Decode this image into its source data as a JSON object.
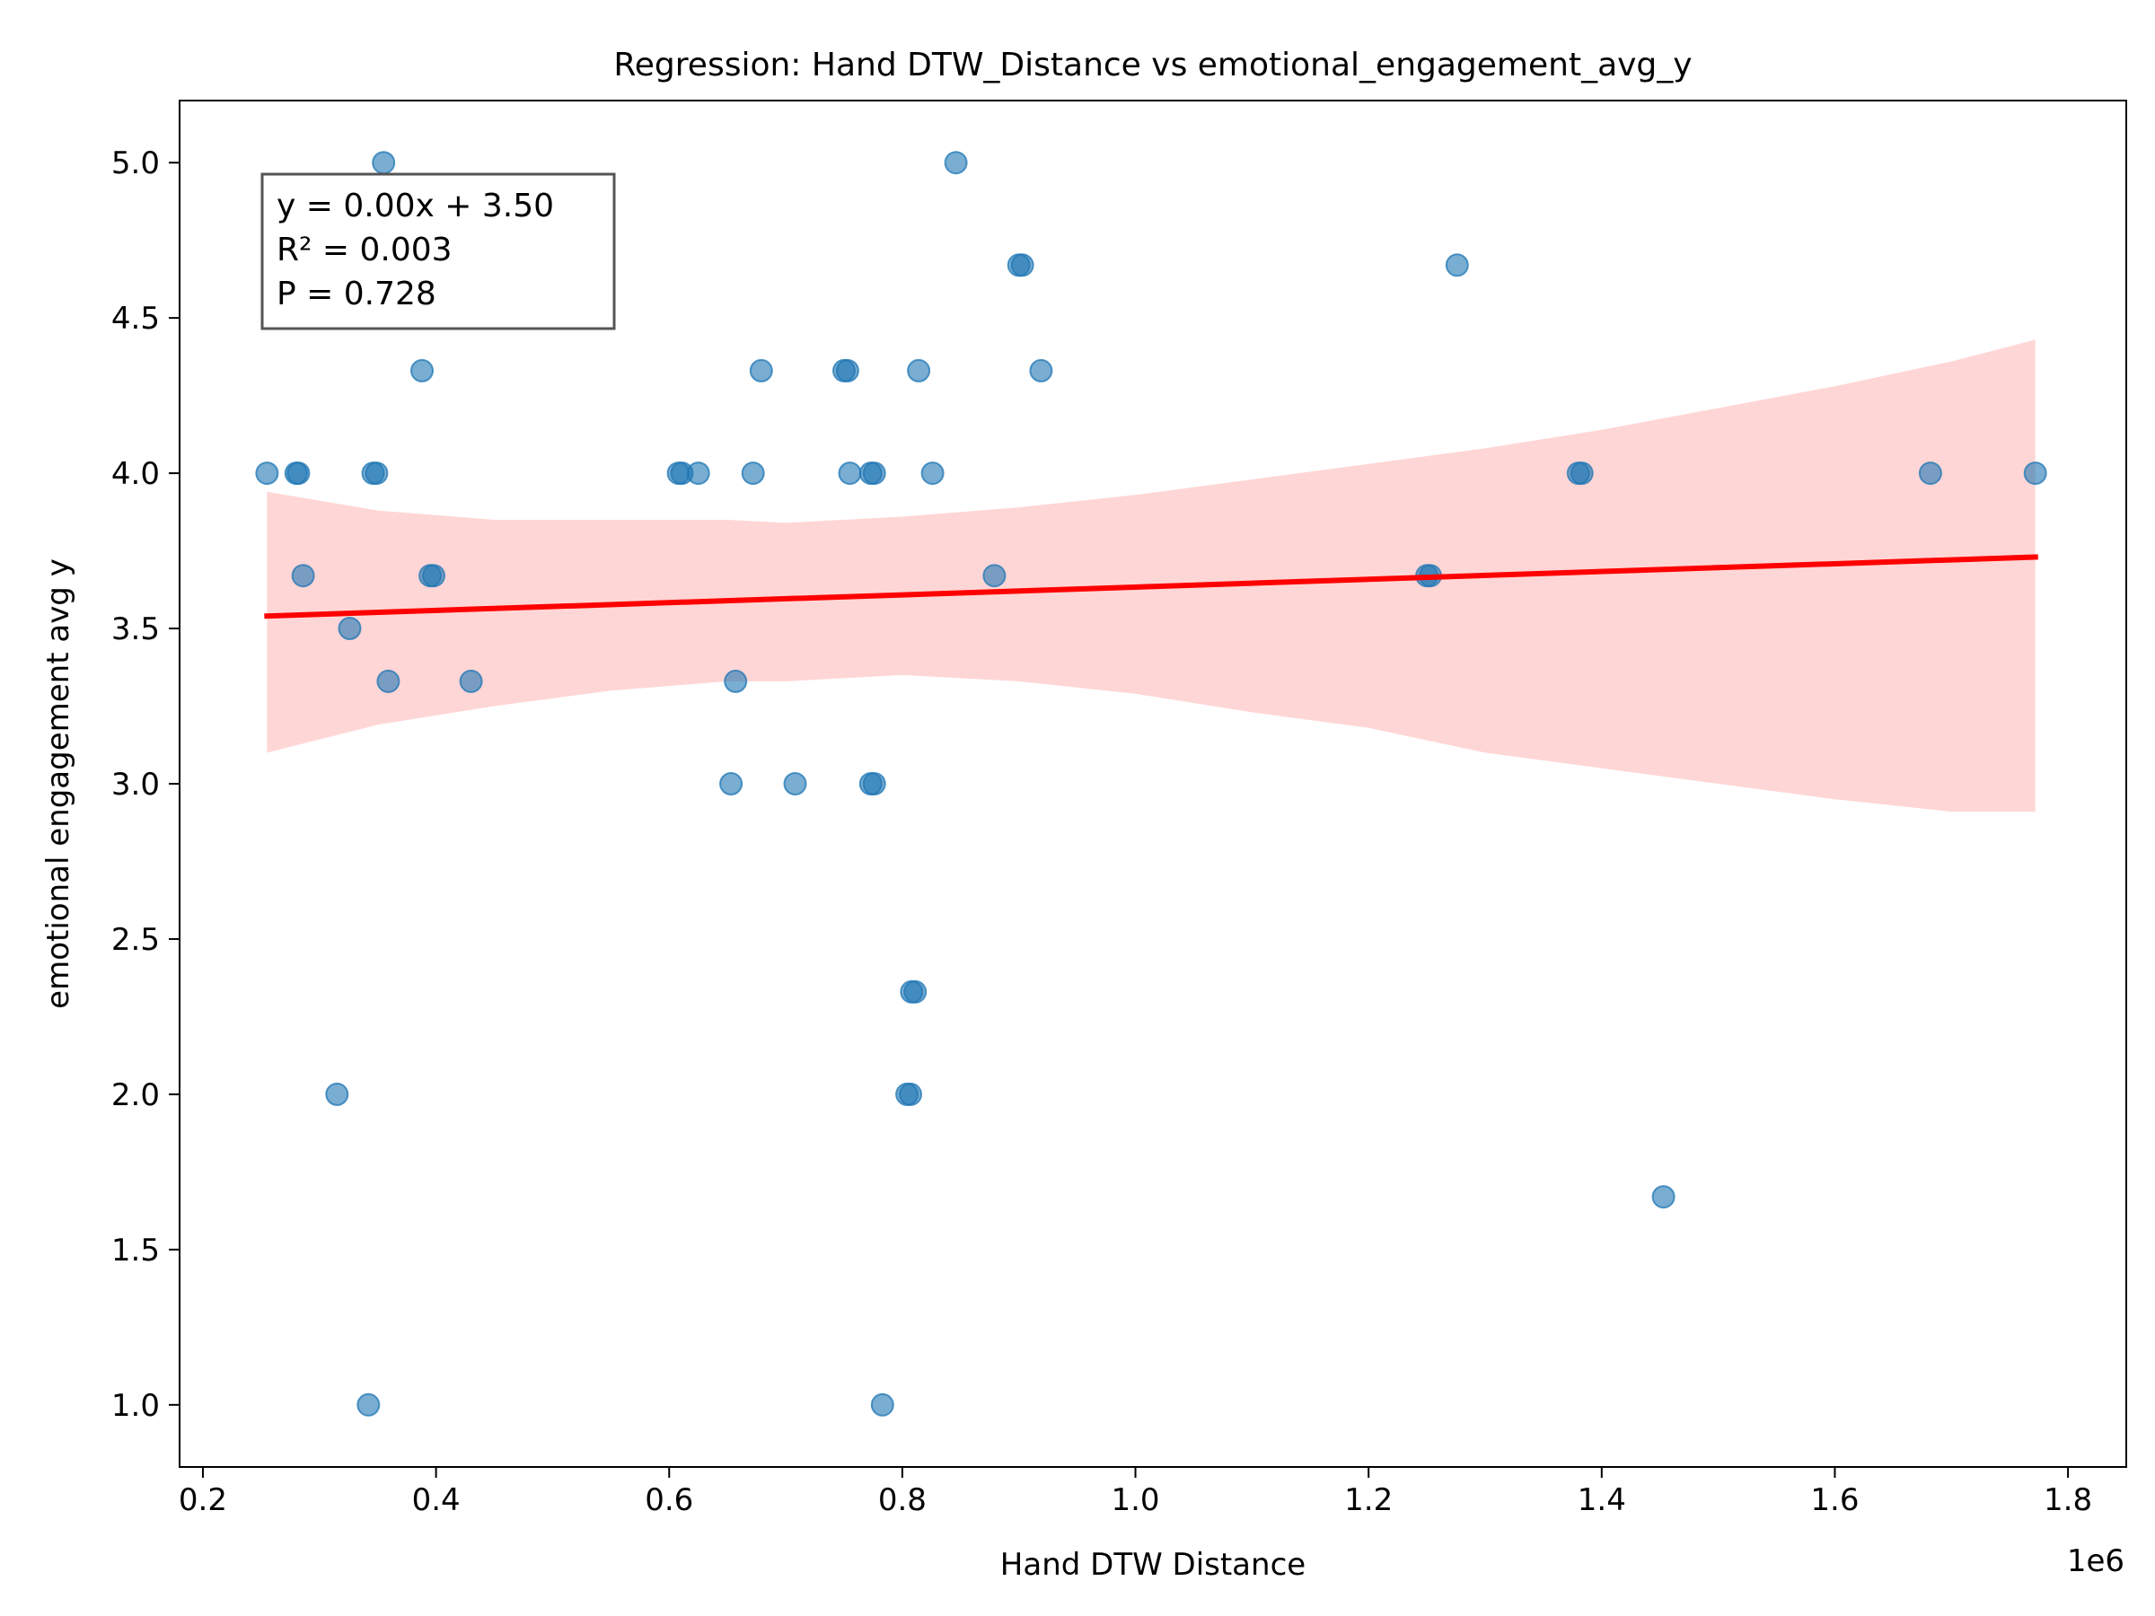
{
  "chart_data": {
    "type": "scatter",
    "title": "Regression: Hand DTW_Distance vs emotional_engagement_avg_y",
    "xlabel": "Hand DTW Distance",
    "ylabel": "emotional engagement avg y",
    "x_offset_label": "1e6",
    "xlim": [
      0.18,
      1.85
    ],
    "ylim": [
      0.8,
      5.2
    ],
    "x_ticks": [
      0.2,
      0.4,
      0.6,
      0.8,
      1.0,
      1.2,
      1.4,
      1.6,
      1.8
    ],
    "x_tick_labels": [
      "0.2",
      "0.4",
      "0.6",
      "0.8",
      "1.0",
      "1.2",
      "1.4",
      "1.6",
      "1.8"
    ],
    "y_ticks": [
      1.0,
      1.5,
      2.0,
      2.5,
      3.0,
      3.5,
      4.0,
      4.5,
      5.0
    ],
    "y_tick_labels": [
      "1.0",
      "1.5",
      "2.0",
      "2.5",
      "3.0",
      "3.5",
      "4.0",
      "4.5",
      "5.0"
    ],
    "grid": false,
    "points": [
      {
        "x": 0.255,
        "y": 4.0
      },
      {
        "x": 0.28,
        "y": 4.0
      },
      {
        "x": 0.282,
        "y": 4.0
      },
      {
        "x": 0.286,
        "y": 3.67
      },
      {
        "x": 0.315,
        "y": 2.0
      },
      {
        "x": 0.326,
        "y": 3.5
      },
      {
        "x": 0.342,
        "y": 1.0
      },
      {
        "x": 0.346,
        "y": 4.0
      },
      {
        "x": 0.349,
        "y": 4.0
      },
      {
        "x": 0.355,
        "y": 5.0
      },
      {
        "x": 0.359,
        "y": 3.33
      },
      {
        "x": 0.388,
        "y": 4.33
      },
      {
        "x": 0.395,
        "y": 3.67
      },
      {
        "x": 0.398,
        "y": 3.67
      },
      {
        "x": 0.43,
        "y": 3.33
      },
      {
        "x": 0.608,
        "y": 4.0
      },
      {
        "x": 0.611,
        "y": 4.0
      },
      {
        "x": 0.625,
        "y": 4.0
      },
      {
        "x": 0.653,
        "y": 3.0
      },
      {
        "x": 0.657,
        "y": 3.33
      },
      {
        "x": 0.672,
        "y": 4.0
      },
      {
        "x": 0.679,
        "y": 4.33
      },
      {
        "x": 0.708,
        "y": 3.0
      },
      {
        "x": 0.75,
        "y": 4.33
      },
      {
        "x": 0.753,
        "y": 4.33
      },
      {
        "x": 0.755,
        "y": 4.0
      },
      {
        "x": 0.773,
        "y": 4.0
      },
      {
        "x": 0.776,
        "y": 4.0
      },
      {
        "x": 0.773,
        "y": 3.0
      },
      {
        "x": 0.776,
        "y": 3.0
      },
      {
        "x": 0.783,
        "y": 1.0
      },
      {
        "x": 0.804,
        "y": 2.0
      },
      {
        "x": 0.807,
        "y": 2.0
      },
      {
        "x": 0.808,
        "y": 2.33
      },
      {
        "x": 0.811,
        "y": 2.33
      },
      {
        "x": 0.814,
        "y": 4.33
      },
      {
        "x": 0.826,
        "y": 4.0
      },
      {
        "x": 0.846,
        "y": 5.0
      },
      {
        "x": 0.879,
        "y": 3.67
      },
      {
        "x": 0.9,
        "y": 4.67
      },
      {
        "x": 0.903,
        "y": 4.67
      },
      {
        "x": 0.919,
        "y": 4.33
      },
      {
        "x": 1.25,
        "y": 3.67
      },
      {
        "x": 1.253,
        "y": 3.67
      },
      {
        "x": 1.276,
        "y": 4.67
      },
      {
        "x": 1.38,
        "y": 4.0
      },
      {
        "x": 1.383,
        "y": 4.0
      },
      {
        "x": 1.453,
        "y": 1.67
      },
      {
        "x": 1.682,
        "y": 4.0
      },
      {
        "x": 1.772,
        "y": 4.0
      }
    ],
    "regression_line": {
      "x": [
        0.255,
        1.772
      ],
      "y": [
        3.54,
        3.73
      ],
      "color": "#ff0000"
    },
    "confidence_band": {
      "x": [
        0.255,
        0.35,
        0.45,
        0.55,
        0.65,
        0.7,
        0.8,
        0.9,
        1.0,
        1.1,
        1.2,
        1.3,
        1.4,
        1.5,
        1.6,
        1.7,
        1.772
      ],
      "upper": [
        3.94,
        3.88,
        3.85,
        3.85,
        3.85,
        3.84,
        3.86,
        3.89,
        3.93,
        3.98,
        4.03,
        4.08,
        4.14,
        4.21,
        4.28,
        4.36,
        4.43
      ],
      "lower": [
        3.1,
        3.19,
        3.25,
        3.3,
        3.33,
        3.33,
        3.35,
        3.33,
        3.29,
        3.23,
        3.18,
        3.1,
        3.05,
        3.0,
        2.95,
        2.91,
        2.91
      ],
      "color": "#ffd6d6"
    },
    "point_color": "#1f77b4",
    "annotation": {
      "lines": [
        "y = 0.00x + 3.50",
        "R² = 0.003",
        "P = 0.728"
      ],
      "placement": "top-left"
    }
  }
}
